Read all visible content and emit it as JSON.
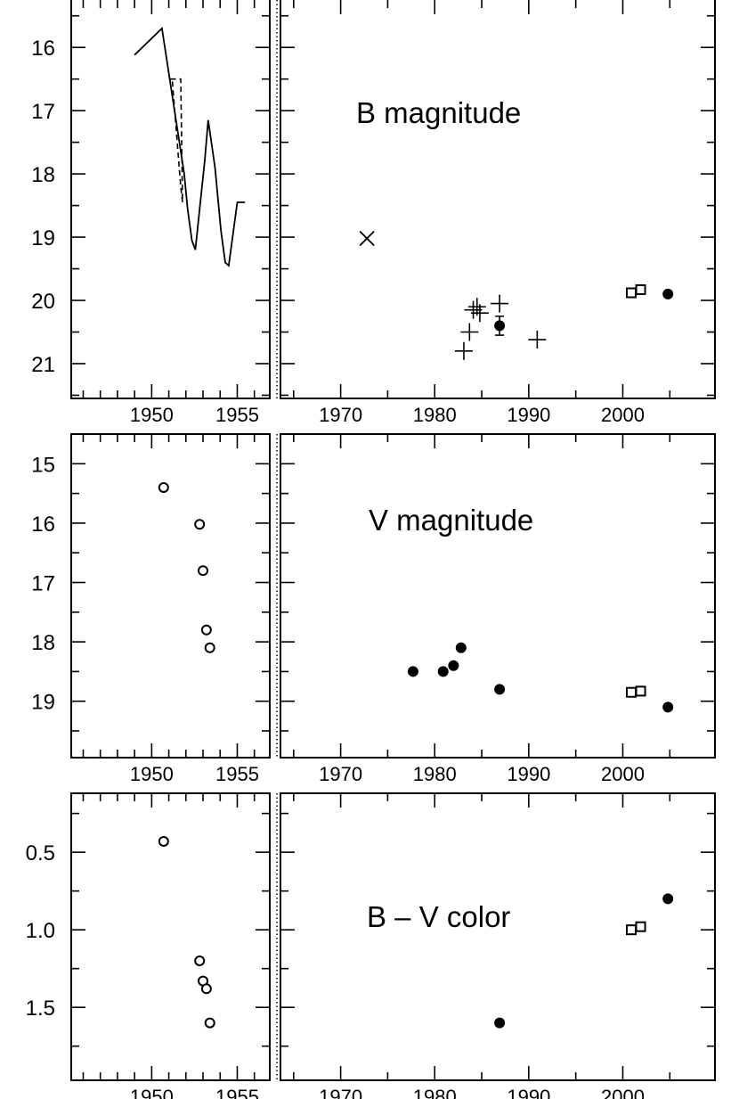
{
  "figure": {
    "divider_style": "dotted"
  },
  "chart_data": [
    {
      "type": "scatter",
      "title": "B magnitude",
      "ylabel": "",
      "xlabel": "",
      "yinverted": true,
      "ylim": [
        15.25,
        21.55
      ],
      "yticks": [
        16,
        17,
        18,
        19,
        20,
        21
      ],
      "left_xlim": [
        1945.3,
        1956.9
      ],
      "left_xticks": [
        1950,
        1955
      ],
      "right_xlim": [
        1963.6,
        2009.8
      ],
      "right_xticks": [
        1970,
        1980,
        1990,
        2000
      ],
      "curve_solid": [
        [
          1949.0,
          16.12
        ],
        [
          1950.6,
          15.7
        ],
        [
          1951.9,
          18.0
        ],
        [
          1952.1,
          18.55
        ],
        [
          1952.35,
          19.05
        ],
        [
          1952.55,
          19.2
        ],
        [
          1953.1,
          17.8
        ],
        [
          1953.3,
          17.15
        ],
        [
          1953.7,
          17.9
        ],
        [
          1954.05,
          18.9
        ],
        [
          1954.3,
          19.4
        ],
        [
          1954.5,
          19.45
        ],
        [
          1955.0,
          18.45
        ],
        [
          1955.45,
          18.45
        ]
      ],
      "curve_dashed": [
        [
          1951.1,
          16.5
        ],
        [
          1951.7,
          16.5
        ],
        [
          1951.8,
          18.45
        ],
        [
          1951.7,
          18.2
        ],
        [
          1951.2,
          16.5
        ]
      ],
      "points_cross": [
        [
          1972.8,
          19.02
        ]
      ],
      "points_plus": [
        [
          1983.1,
          20.8
        ],
        [
          1983.7,
          20.5
        ],
        [
          1984.1,
          20.15
        ],
        [
          1984.5,
          20.1
        ],
        [
          1984.8,
          20.2
        ],
        [
          1986.9,
          20.05
        ],
        [
          1990.9,
          20.62
        ]
      ],
      "points_filled": [
        [
          1986.9,
          20.4
        ]
      ],
      "errorbars": [
        {
          "x": 1986.9,
          "low": 20.25,
          "high": 20.55
        }
      ],
      "points_square": [
        [
          2000.9,
          19.88
        ],
        [
          2001.9,
          19.83
        ]
      ],
      "points_filled_late": [
        [
          2004.8,
          19.9
        ]
      ]
    },
    {
      "type": "scatter",
      "title": "V magnitude",
      "ylabel": "",
      "xlabel": "",
      "yinverted": true,
      "ylim": [
        14.5,
        19.95
      ],
      "yticks": [
        15,
        16,
        17,
        18,
        19
      ],
      "left_xlim": [
        1945.3,
        1956.9
      ],
      "left_xticks": [
        1950,
        1955
      ],
      "right_xlim": [
        1963.6,
        2009.8
      ],
      "right_xticks": [
        1970,
        1980,
        1990,
        2000
      ],
      "points_open": [
        [
          1950.7,
          15.4
        ],
        [
          1952.8,
          16.02
        ],
        [
          1953.0,
          16.8
        ],
        [
          1953.2,
          17.8
        ],
        [
          1953.4,
          18.1
        ]
      ],
      "points_filled": [
        [
          1977.7,
          18.5
        ],
        [
          1980.9,
          18.5
        ],
        [
          1982.0,
          18.4
        ],
        [
          1982.8,
          18.1
        ],
        [
          1986.9,
          18.8
        ],
        [
          2004.8,
          19.1
        ]
      ],
      "points_square": [
        [
          2000.9,
          18.85
        ],
        [
          2001.9,
          18.83
        ]
      ]
    },
    {
      "type": "scatter",
      "title": "B – V color",
      "ylabel": "",
      "xlabel": "",
      "yinverted": true,
      "ylim": [
        0.12,
        1.97
      ],
      "yticks": [
        "0.5",
        "1.0",
        "1.5"
      ],
      "left_xlim": [
        1945.3,
        1956.9
      ],
      "left_xticks": [
        1950,
        1955
      ],
      "right_xlim": [
        1963.6,
        2009.8
      ],
      "right_xticks": [
        1970,
        1980,
        1990,
        2000
      ],
      "points_open": [
        [
          1950.7,
          0.43
        ],
        [
          1952.8,
          1.2
        ],
        [
          1953.0,
          1.33
        ],
        [
          1953.2,
          1.38
        ],
        [
          1953.4,
          1.6
        ]
      ],
      "points_filled": [
        [
          1986.9,
          1.6
        ],
        [
          2004.8,
          0.8
        ]
      ],
      "points_square": [
        [
          2000.9,
          1.0
        ],
        [
          2001.9,
          0.98
        ]
      ]
    }
  ]
}
